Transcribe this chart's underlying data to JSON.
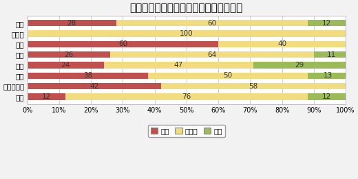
{
  "title": "見学会、イベント等の来場者数（割合）",
  "categories": [
    "全国",
    "北海道",
    "東北",
    "関東",
    "中部",
    "近畸",
    "中国・四国",
    "九州"
  ],
  "series": {
    "減少": [
      28,
      0,
      60,
      26,
      24,
      38,
      42,
      12
    ],
    "横ばい": [
      60,
      100,
      40,
      64,
      47,
      50,
      58,
      76
    ],
    "増加": [
      12,
      0,
      0,
      11,
      29,
      13,
      0,
      12
    ]
  },
  "colors": {
    "減少": "#C0504D",
    "横ばい": "#F2DC80",
    "増加": "#9BBB59"
  },
  "background_color": "#F2F2F2",
  "plot_bg": "#FFFFFF",
  "xlim": [
    0,
    100
  ],
  "xticks": [
    0,
    10,
    20,
    30,
    40,
    50,
    60,
    70,
    80,
    90,
    100
  ],
  "xtick_labels": [
    "0%",
    "10%",
    "20%",
    "30%",
    "40%",
    "50%",
    "60%",
    "70%",
    "80%",
    "90%",
    "100%"
  ],
  "title_fontsize": 11,
  "tick_fontsize": 7.5,
  "label_fontsize": 7.5,
  "bar_height": 0.62,
  "legend_labels": [
    "減少",
    "横ばい",
    "増加"
  ]
}
